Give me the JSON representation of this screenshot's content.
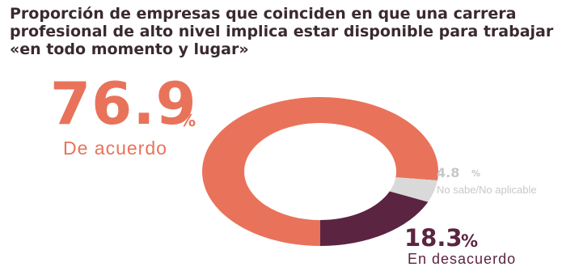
{
  "chart_data": {
    "type": "pie",
    "title_lines": [
      "Proporción de empresas que coinciden en que una carrera",
      "profesional de alto nivel implica estar disponible para trabajar",
      "«en todo momento y lugar»"
    ],
    "categories": [
      "De acuerdo",
      "No sabe/No aplicable",
      "En desacuerdo"
    ],
    "values": [
      76.9,
      4.8,
      18.3
    ],
    "labels": [
      "76.9",
      "4.8",
      "18.3"
    ],
    "unit": "%",
    "colors": [
      "#E8735A",
      "#D9D9D9",
      "#5B2440"
    ],
    "label_colors": [
      "#E8735A",
      "#C8C8C8",
      "#5B2440"
    ],
    "style": "donut"
  },
  "colors": {
    "title": "#3a2a2e"
  }
}
